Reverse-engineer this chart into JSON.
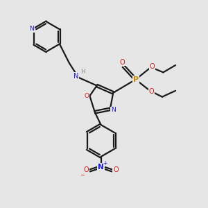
{
  "bg_color": "#e6e6e6",
  "bond_color": "#1a1a1a",
  "N_color": "#1a1acc",
  "O_color": "#cc1a1a",
  "P_color": "#cc8800",
  "H_color": "#888888",
  "line_width": 1.6,
  "figsize": [
    3.0,
    3.0
  ],
  "dpi": 100,
  "xlim": [
    0,
    10
  ],
  "ylim": [
    0,
    10
  ]
}
